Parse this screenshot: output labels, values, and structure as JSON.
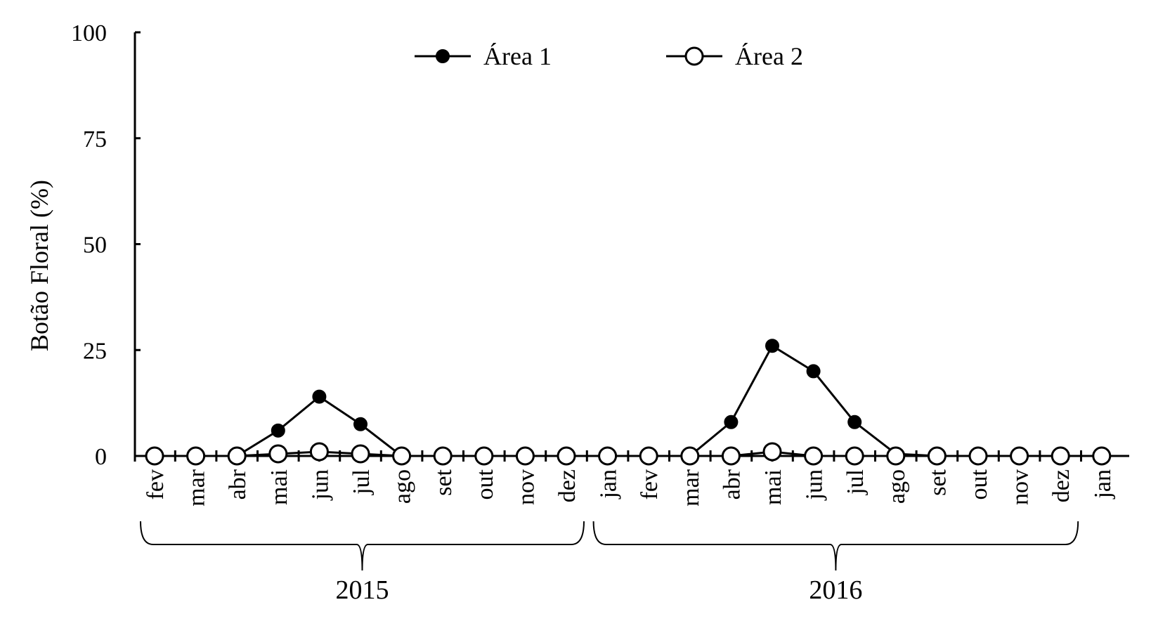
{
  "chart_data": {
    "type": "line",
    "title": "",
    "ylabel": "Botão Floral (%)",
    "xlabel": "",
    "ylim": [
      0,
      100
    ],
    "yticks": [
      "0",
      "25",
      "50",
      "75",
      "100"
    ],
    "ytick_values": [
      0,
      25,
      50,
      75,
      100
    ],
    "categories": [
      "fev",
      "mar",
      "abr",
      "mai",
      "jun",
      "jul",
      "ago",
      "set",
      "out",
      "nov",
      "dez",
      "jan",
      "fev",
      "mar",
      "abr",
      "mai",
      "jun",
      "jul",
      "ago",
      "set",
      "out",
      "nov",
      "dez",
      "jan"
    ],
    "year_groups": [
      {
        "label": "2015",
        "from": 0,
        "to": 10
      },
      {
        "label": "2016",
        "from": 11,
        "to": 22
      }
    ],
    "legend_position": "top-center",
    "grid": false,
    "series": [
      {
        "name": "Área 1",
        "marker": "filled-circle",
        "color": "#000000",
        "values": [
          0,
          0,
          0,
          6,
          14,
          7.5,
          0,
          0,
          0,
          0,
          0,
          0,
          0,
          0,
          8,
          26,
          20,
          8,
          0.5,
          0,
          0,
          0,
          0,
          0
        ]
      },
      {
        "name": "Área 2",
        "marker": "open-circle",
        "color": "#000000",
        "values": [
          0,
          0,
          0,
          0.5,
          1,
          0.5,
          0,
          0,
          0,
          0,
          0,
          0,
          0,
          0,
          0,
          1,
          0,
          0,
          0,
          0,
          0,
          0,
          0,
          0
        ]
      }
    ]
  }
}
